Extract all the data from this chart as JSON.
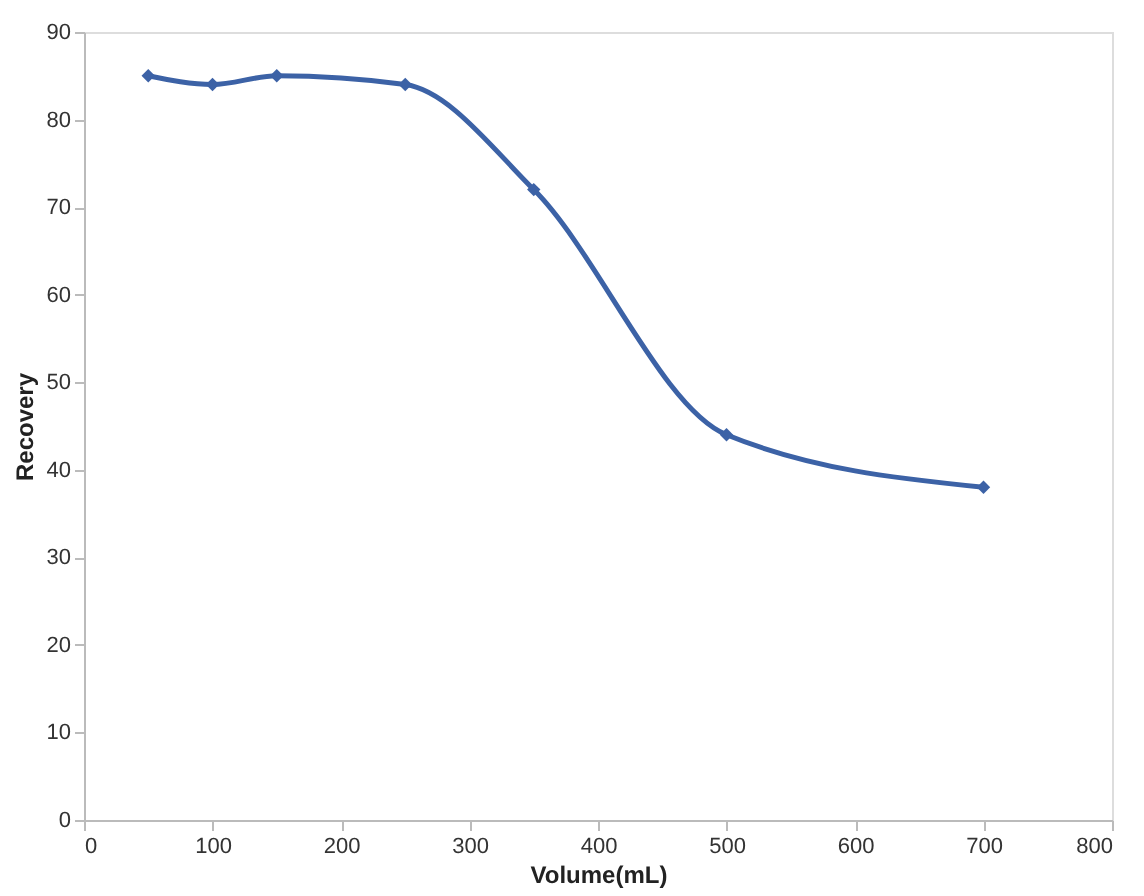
{
  "chart_data": {
    "type": "line",
    "xlabel": "Volume(mL)",
    "ylabel": "Recovery",
    "x": [
      50,
      100,
      150,
      250,
      350,
      500,
      700
    ],
    "series": [
      {
        "color": "#3c62a6",
        "values": [
          85,
          84,
          85,
          84,
          72,
          44,
          38
        ]
      }
    ],
    "xlim": [
      0,
      800
    ],
    "xticks": [
      0,
      100,
      200,
      300,
      400,
      500,
      600,
      700,
      800
    ],
    "ylim": [
      0,
      90
    ],
    "yticks": [
      0,
      10,
      20,
      30,
      40,
      50,
      60,
      70,
      80,
      90
    ],
    "grid": false,
    "legend": false,
    "marker": "diamond",
    "line_style": "solid"
  }
}
